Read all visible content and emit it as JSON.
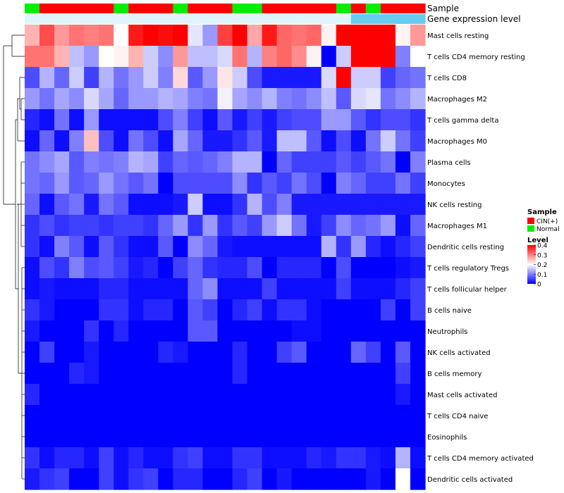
{
  "chart_data": {
    "type": "heatmap",
    "title": "",
    "annotation_tracks": [
      {
        "name": "Sample",
        "values": [
          "N",
          "C",
          "C",
          "C",
          "C",
          "C",
          "N",
          "C",
          "C",
          "C",
          "N",
          "C",
          "C",
          "C",
          "N",
          "N",
          "C",
          "C",
          "C",
          "C",
          "C",
          "N",
          "C",
          "N",
          "C",
          "C",
          "C"
        ]
      },
      {
        "name": "Gene expression level",
        "values": [
          "L",
          "L",
          "L",
          "L",
          "L",
          "L",
          "L",
          "L",
          "L",
          "L",
          "L",
          "L",
          "L",
          "L",
          "L",
          "L",
          "L",
          "L",
          "L",
          "L",
          "L",
          "L",
          "H",
          "H",
          "H",
          "H",
          "H"
        ]
      }
    ],
    "track_colors": {
      "Sample": {
        "C": "#ff0000",
        "N": "#00ee00"
      },
      "Gene expression level": {
        "L": "#e0f4fb",
        "H": "#66ccf0"
      }
    },
    "rows": [
      "Mast cells resting",
      "T cells CD4 memory resting",
      "T cells CD8",
      "Macrophages M2",
      "T cells gamma delta",
      "Macrophages M0",
      "Plasma cells",
      "Monocytes",
      "NK cells resting",
      "Macrophages M1",
      "Dendritic cells resting",
      "T cells regulatory  Tregs",
      "T cells follicular helper",
      "B cells naive",
      "Neutrophils",
      "NK cells activated",
      "B cells memory",
      "Mast cells activated",
      "T cells CD4 naive",
      "Eosinophils",
      "T cells CD4 memory activated",
      "Dendritic cells activated"
    ],
    "values": [
      [
        0.26,
        0.34,
        0.28,
        0.31,
        0.3,
        0.31,
        0.2,
        0.38,
        0.4,
        0.39,
        0.4,
        0.18,
        0.12,
        0.35,
        0.4,
        0.27,
        0.38,
        0.32,
        0.31,
        0.32,
        0.21,
        0.4,
        0.4,
        0.4,
        0.4,
        0.21,
        0.28
      ],
      [
        0.31,
        0.31,
        0.26,
        0.15,
        0.12,
        0.2,
        0.21,
        0.26,
        0.16,
        0.11,
        0.28,
        0.15,
        0.15,
        0.17,
        0.31,
        0.14,
        0.3,
        0.32,
        0.29,
        0.21,
        0.0,
        0.16,
        0.4,
        0.4,
        0.4,
        0.1,
        0.2
      ],
      [
        0.06,
        0.14,
        0.08,
        0.16,
        0.05,
        0.14,
        0.09,
        0.12,
        0.16,
        0.1,
        0.23,
        0.07,
        0.12,
        0.22,
        0.16,
        0.06,
        0.02,
        0.02,
        0.02,
        0.02,
        0.17,
        0.4,
        0.16,
        0.16,
        0.05,
        0.08,
        0.09
      ],
      [
        0.12,
        0.09,
        0.13,
        0.11,
        0.17,
        0.13,
        0.08,
        0.12,
        0.12,
        0.14,
        0.13,
        0.1,
        0.09,
        0.19,
        0.13,
        0.11,
        0.14,
        0.1,
        0.09,
        0.11,
        0.15,
        0.07,
        0.17,
        0.18,
        0.09,
        0.11,
        0.14
      ],
      [
        0.03,
        0.01,
        0.09,
        0.01,
        0.12,
        0.01,
        0.01,
        0.01,
        0.01,
        0.06,
        0.1,
        0.05,
        0.01,
        0.07,
        0.02,
        0.05,
        0.02,
        0.05,
        0.06,
        0.06,
        0.12,
        0.12,
        0.07,
        0.04,
        0.06,
        0.06,
        0.04
      ],
      [
        0.01,
        0.08,
        0.01,
        0.1,
        0.25,
        0.06,
        0.01,
        0.09,
        0.06,
        0.01,
        0.13,
        0.08,
        0.02,
        0.02,
        0.04,
        0.07,
        0.02,
        0.15,
        0.15,
        0.07,
        0.01,
        0.06,
        0.01,
        0.09,
        0.16,
        0.09,
        0.05
      ],
      [
        0.09,
        0.11,
        0.13,
        0.07,
        0.1,
        0.09,
        0.1,
        0.14,
        0.13,
        0.05,
        0.08,
        0.07,
        0.08,
        0.1,
        0.14,
        0.14,
        0.0,
        0.08,
        0.05,
        0.05,
        0.05,
        0.07,
        0.05,
        0.07,
        0.09,
        0.0,
        0.1
      ],
      [
        0.09,
        0.08,
        0.12,
        0.07,
        0.08,
        0.12,
        0.09,
        0.07,
        0.09,
        0.0,
        0.06,
        0.06,
        0.06,
        0.06,
        0.11,
        0.04,
        0.07,
        0.05,
        0.09,
        0.06,
        0.0,
        0.1,
        0.08,
        0.05,
        0.05,
        0.09,
        0.05
      ],
      [
        0.08,
        0.01,
        0.07,
        0.09,
        0.02,
        0.09,
        0.07,
        0.01,
        0.01,
        0.01,
        0.02,
        0.16,
        0.01,
        0.01,
        0.04,
        0.14,
        0.06,
        0.1,
        0.02,
        0.02,
        0.02,
        0.02,
        0.02,
        0.02,
        0.02,
        0.02,
        0.02
      ],
      [
        0.04,
        0.06,
        0.04,
        0.05,
        0.05,
        0.04,
        0.05,
        0.05,
        0.04,
        0.08,
        0.12,
        0.04,
        0.12,
        0.04,
        0.07,
        0.05,
        0.12,
        0.16,
        0.09,
        0.02,
        0.05,
        0.11,
        0.08,
        0.09,
        0.12,
        0.01,
        0.08
      ],
      [
        0.04,
        0.01,
        0.1,
        0.07,
        0.01,
        0.07,
        0.04,
        0.01,
        0.01,
        0.07,
        0.0,
        0.11,
        0.08,
        0.02,
        0.01,
        0.01,
        0.01,
        0.01,
        0.01,
        0.01,
        0.14,
        0.04,
        0.12,
        0.03,
        0.01,
        0.03,
        0.05
      ],
      [
        0.01,
        0.06,
        0.04,
        0.1,
        0.06,
        0.07,
        0.05,
        0.02,
        0.03,
        0.0,
        0.05,
        0.08,
        0.04,
        0.03,
        0.03,
        0.06,
        0.0,
        0.03,
        0.03,
        0.03,
        0.0,
        0.06,
        0.0,
        0.0,
        0.0,
        0.01,
        0.02
      ],
      [
        0.01,
        0.02,
        0.01,
        0.01,
        0.01,
        0.03,
        0.03,
        0.01,
        0.01,
        0.01,
        0.01,
        0.08,
        0.11,
        0.01,
        0.01,
        0.01,
        0.05,
        0.01,
        0.01,
        0.01,
        0.01,
        0.05,
        0.01,
        0.01,
        0.01,
        0.03,
        0.05
      ],
      [
        0.04,
        0.02,
        0.0,
        0.0,
        0.0,
        0.04,
        0.04,
        0.01,
        0.03,
        0.03,
        0.0,
        0.07,
        0.05,
        0.0,
        0.03,
        0.05,
        0.01,
        0.04,
        0.04,
        0.01,
        0.0,
        0.0,
        0.0,
        0.0,
        0.05,
        0.0,
        0.05
      ],
      [
        0.02,
        0.0,
        0.0,
        0.0,
        0.04,
        0.0,
        0.03,
        0.0,
        0.0,
        0.0,
        0.0,
        0.07,
        0.07,
        0.0,
        0.0,
        0.0,
        0.0,
        0.0,
        0.01,
        0.01,
        0.0,
        0.0,
        0.0,
        0.0,
        0.0,
        0.0,
        0.0
      ],
      [
        0.0,
        0.05,
        0.0,
        0.0,
        0.02,
        0.0,
        0.0,
        0.0,
        0.0,
        0.03,
        0.02,
        0.0,
        0.0,
        0.0,
        0.03,
        0.0,
        0.0,
        0.05,
        0.07,
        0.0,
        0.0,
        0.0,
        0.08,
        0.05,
        0.0,
        0.07,
        0.0
      ],
      [
        0.0,
        0.0,
        0.0,
        0.03,
        0.02,
        0.0,
        0.0,
        0.0,
        0.0,
        0.0,
        0.0,
        0.0,
        0.0,
        0.0,
        0.03,
        0.0,
        0.0,
        0.0,
        0.0,
        0.0,
        0.0,
        0.0,
        0.0,
        0.0,
        0.0,
        0.05,
        0.0
      ],
      [
        0.03,
        0.0,
        0.0,
        0.0,
        0.0,
        0.0,
        0.0,
        0.0,
        0.0,
        0.0,
        0.0,
        0.0,
        0.0,
        0.0,
        0.0,
        0.0,
        0.0,
        0.0,
        0.0,
        0.0,
        0.0,
        0.0,
        0.0,
        0.0,
        0.0,
        0.02,
        0.0
      ],
      [
        0.0,
        0.0,
        0.0,
        0.0,
        0.0,
        0.0,
        0.0,
        0.0,
        0.0,
        0.0,
        0.0,
        0.0,
        0.0,
        0.0,
        0.0,
        0.0,
        0.0,
        0.0,
        0.0,
        0.0,
        0.0,
        0.0,
        0.0,
        0.0,
        0.0,
        0.0,
        0.0
      ],
      [
        0.0,
        0.0,
        0.0,
        0.0,
        0.0,
        0.0,
        0.0,
        0.0,
        0.0,
        0.0,
        0.0,
        0.0,
        0.0,
        0.0,
        0.0,
        0.0,
        0.0,
        0.0,
        0.0,
        0.0,
        0.0,
        0.0,
        0.0,
        0.0,
        0.0,
        0.0,
        0.0
      ],
      [
        0.04,
        0.01,
        0.03,
        0.03,
        0.01,
        0.05,
        0.01,
        0.03,
        0.01,
        0.01,
        0.04,
        0.05,
        0.01,
        0.01,
        0.04,
        0.04,
        0.01,
        0.01,
        0.01,
        0.03,
        0.02,
        0.04,
        0.04,
        0.02,
        0.01,
        0.14,
        0.01
      ],
      [
        0.02,
        0.04,
        0.05,
        0.0,
        0.0,
        0.05,
        0.01,
        0.04,
        0.05,
        0.0,
        0.03,
        0.03,
        0.0,
        0.0,
        0.03,
        0.05,
        0.0,
        0.02,
        0.0,
        0.0,
        0.0,
        0.0,
        0.0,
        0.02,
        0.0,
        0.2,
        0.0
      ]
    ],
    "color_scale": {
      "min": 0,
      "mid": 0.2,
      "max": 0.4,
      "low_color": "#0000ff",
      "mid_color": "#ffffff",
      "high_color": "#ff0000"
    },
    "row_dendrogram": true,
    "legends": {
      "sample": {
        "title": "Sample",
        "items": [
          {
            "label": "CIN(+)",
            "key": "C"
          },
          {
            "label": "Normal",
            "key": "N"
          }
        ]
      },
      "level": {
        "title": "Level",
        "ticks": [
          {
            "label": "0.4",
            "value": 0.4
          },
          {
            "label": "0.3",
            "value": 0.3
          },
          {
            "label": "0.2",
            "value": 0.2
          },
          {
            "label": "0.1",
            "value": 0.1
          },
          {
            "label": "0",
            "value": 0
          }
        ]
      }
    }
  }
}
